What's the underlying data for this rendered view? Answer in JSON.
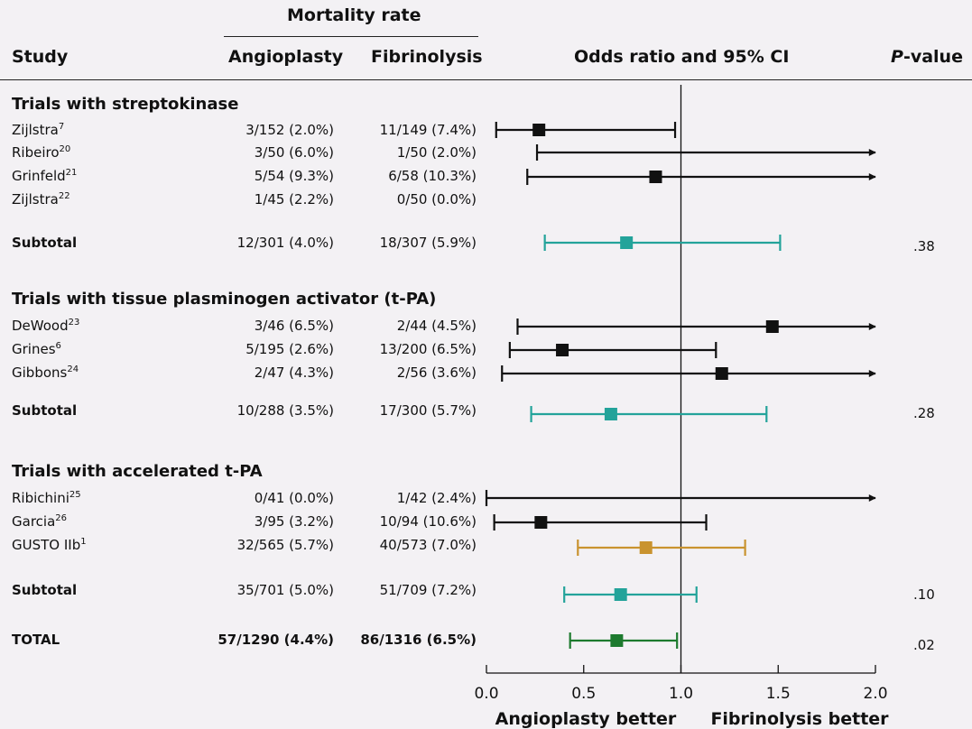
{
  "header": {
    "group_label": "Mortality rate",
    "col_study": "Study",
    "col_angio": "Angioplasty",
    "col_fibrino": "Fibrinolysis",
    "col_or": "Odds ratio and 95% CI",
    "col_p_italic": "P",
    "col_p_rest": "-value"
  },
  "sections": [
    {
      "title": "Trials with streptokinase",
      "rows": [
        {
          "study": "Zijlstra",
          "ref": "7",
          "angio": "3/152 (2.0%)",
          "fibrino": "11/149  (7.4%)"
        },
        {
          "study": "Ribeiro",
          "ref": "20",
          "angio": "3/50 (6.0%)",
          "fibrino": "1/50  (2.0%)"
        },
        {
          "study": "Grinfeld",
          "ref": "21",
          "angio": "5/54 (9.3%)",
          "fibrino": "6/58 (10.3%)"
        },
        {
          "study": "Zijlstra",
          "ref": "22",
          "angio": "1/45 (2.2%)",
          "fibrino": "0/50  (0.0%)"
        }
      ],
      "subtotal": {
        "label": "Subtotal",
        "angio": "12/301 (4.0%)",
        "fibrino": "18/307  (5.9%)",
        "p": ".38"
      }
    },
    {
      "title": "Trials with tissue plasminogen activator (t-PA)",
      "rows": [
        {
          "study": "DeWood",
          "ref": "23",
          "angio": "3/46 (6.5%)",
          "fibrino": "2/44  (4.5%)"
        },
        {
          "study": "Grines",
          "ref": "6",
          "angio": "5/195 (2.6%)",
          "fibrino": "13/200  (6.5%)"
        },
        {
          "study": "Gibbons",
          "ref": "24",
          "angio": "2/47 (4.3%)",
          "fibrino": "2/56  (3.6%)"
        }
      ],
      "subtotal": {
        "label": "Subtotal",
        "angio": "10/288 (3.5%)",
        "fibrino": "17/300  (5.7%)",
        "p": ".28"
      }
    },
    {
      "title": "Trials with accelerated t-PA",
      "rows": [
        {
          "study": "Ribichini",
          "ref": "25",
          "angio": "0/41 (0.0%)",
          "fibrino": "1/42  (2.4%)"
        },
        {
          "study": "Garcia",
          "ref": "26",
          "angio": "3/95 (3.2%)",
          "fibrino": "10/94 (10.6%)"
        },
        {
          "study": "GUSTO IIb",
          "ref": "1",
          "angio": "32/565 (5.7%)",
          "fibrino": "40/573  (7.0%)"
        }
      ],
      "subtotal": {
        "label": "Subtotal",
        "angio": "35/701 (5.0%)",
        "fibrino": "51/709  (7.2%)",
        "p": ".10"
      }
    }
  ],
  "total": {
    "label": "TOTAL",
    "angio": "57/1290 (4.4%)",
    "fibrino": "86/1316 (6.5%)",
    "p": ".02"
  },
  "chart_data": {
    "type": "forest",
    "xlim": [
      0,
      2
    ],
    "reference_line": 1.0,
    "ticks": [
      {
        "v": 0,
        "label": "0.0"
      },
      {
        "v": 0.5,
        "label": "0.5"
      },
      {
        "v": 1.0,
        "label": "1.0"
      },
      {
        "v": 1.5,
        "label": "1.5"
      },
      {
        "v": 2.0,
        "label": "2.0"
      }
    ],
    "left_label": "Angioplasty better",
    "right_label": "Fibrinolysis better",
    "colors": {
      "study": "#111111",
      "subtotal": "#23a39a",
      "gusto": "#c9932f",
      "total": "#1d7a2e"
    },
    "estimates": [
      {
        "study": "Zijlstra 7",
        "or": 0.27,
        "lo": 0.05,
        "hi": 0.97,
        "arrow": false,
        "kind": "study"
      },
      {
        "study": "Ribeiro 20",
        "or": null,
        "lo": 0.26,
        "hi": 2.0,
        "arrow": true,
        "kind": "study"
      },
      {
        "study": "Grinfeld 21",
        "or": 0.87,
        "lo": 0.21,
        "hi": 2.0,
        "arrow": true,
        "kind": "study"
      },
      {
        "study": "Zijlstra 22",
        "or": null,
        "lo": null,
        "hi": null,
        "arrow": false,
        "kind": "study"
      },
      {
        "study": "Subtotal streptokinase",
        "or": 0.72,
        "lo": 0.3,
        "hi": 1.51,
        "arrow": false,
        "kind": "subtotal"
      },
      {
        "study": "DeWood 23",
        "or": 1.47,
        "lo": 0.16,
        "hi": 2.0,
        "arrow": true,
        "kind": "study"
      },
      {
        "study": "Grines 6",
        "or": 0.39,
        "lo": 0.12,
        "hi": 1.18,
        "arrow": false,
        "kind": "study"
      },
      {
        "study": "Gibbons 24",
        "or": 1.21,
        "lo": 0.08,
        "hi": 2.0,
        "arrow": true,
        "kind": "study"
      },
      {
        "study": "Subtotal t-PA",
        "or": 0.64,
        "lo": 0.23,
        "hi": 1.44,
        "arrow": false,
        "kind": "subtotal"
      },
      {
        "study": "Ribichini 25",
        "or": null,
        "lo": 0.0,
        "hi": 2.0,
        "arrow": true,
        "kind": "study"
      },
      {
        "study": "Garcia 26",
        "or": 0.28,
        "lo": 0.04,
        "hi": 1.13,
        "arrow": false,
        "kind": "study"
      },
      {
        "study": "GUSTO IIb 1",
        "or": 0.82,
        "lo": 0.47,
        "hi": 1.33,
        "arrow": false,
        "kind": "gusto"
      },
      {
        "study": "Subtotal accelerated t-PA",
        "or": 0.69,
        "lo": 0.4,
        "hi": 1.08,
        "arrow": false,
        "kind": "subtotal"
      },
      {
        "study": "TOTAL",
        "or": 0.67,
        "lo": 0.43,
        "hi": 0.98,
        "arrow": false,
        "kind": "total"
      }
    ]
  }
}
